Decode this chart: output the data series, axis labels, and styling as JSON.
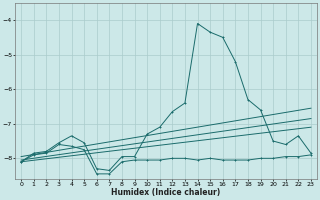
{
  "xlabel": "Humidex (Indice chaleur)",
  "bg_color": "#cce8e8",
  "grid_color": "#aacccc",
  "line_color": "#1a6b6b",
  "xlim": [
    -0.5,
    23.5
  ],
  "ylim": [
    -8.6,
    -3.5
  ],
  "yticks": [
    -8,
    -7,
    -6,
    -5,
    -4
  ],
  "xticks": [
    0,
    1,
    2,
    3,
    4,
    5,
    6,
    7,
    8,
    9,
    10,
    11,
    12,
    13,
    14,
    15,
    16,
    17,
    18,
    19,
    20,
    21,
    22,
    23
  ],
  "line1": [
    -8.1,
    -7.85,
    -7.8,
    -7.55,
    -7.35,
    -7.55,
    -8.3,
    -8.35,
    -7.95,
    -7.95,
    -7.3,
    -7.1,
    -6.65,
    -6.4,
    -4.1,
    -4.35,
    -4.5,
    -5.2,
    -6.3,
    -6.6,
    -7.5,
    -7.6,
    -7.35,
    -7.85
  ],
  "line2_x": [
    0,
    23
  ],
  "line2_y": [
    -7.95,
    -6.55
  ],
  "line3_x": [
    0,
    23
  ],
  "line3_y": [
    -8.05,
    -6.85
  ],
  "line4_x": [
    0,
    23
  ],
  "line4_y": [
    -8.1,
    -7.1
  ],
  "line5": [
    -8.1,
    -7.9,
    -7.85,
    -7.6,
    -7.65,
    -7.75,
    -8.45,
    -8.45,
    -8.1,
    -8.05,
    -8.05,
    -8.05,
    -8.0,
    -8.0,
    -8.05,
    -8.0,
    -8.05,
    -8.05,
    -8.05,
    -8.0,
    -8.0,
    -7.95,
    -7.95,
    -7.9
  ]
}
